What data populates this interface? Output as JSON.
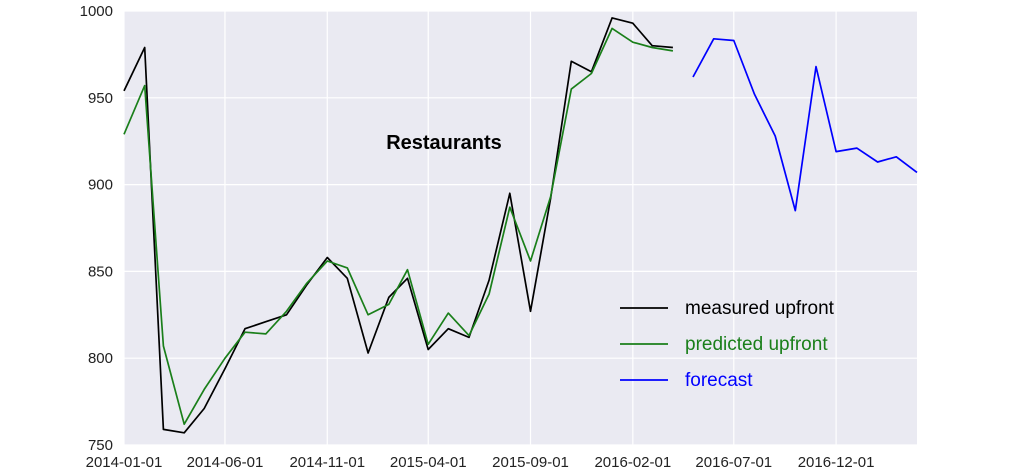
{
  "chart_data": {
    "type": "line",
    "title": "",
    "annotation": "Restaurants",
    "xlabel": "",
    "ylabel": "",
    "xlim": [
      "2014-01-01",
      "2017-04-01"
    ],
    "ylim": [
      750,
      1000
    ],
    "grid": true,
    "legend_position": "lower-right",
    "x_ticks": [
      "2014-01-01",
      "2014-06-01",
      "2014-11-01",
      "2015-04-01",
      "2015-09-01",
      "2016-02-01",
      "2016-07-01",
      "2016-12-01"
    ],
    "y_ticks": [
      750,
      800,
      850,
      900,
      950,
      1000
    ],
    "series": [
      {
        "name": "measured upfront",
        "color": "#000000",
        "x": [
          "2014-01-01",
          "2014-02-01",
          "2014-03-01",
          "2014-04-01",
          "2014-05-01",
          "2014-06-01",
          "2014-07-01",
          "2014-08-01",
          "2014-09-01",
          "2014-10-01",
          "2014-11-01",
          "2014-12-01",
          "2015-01-01",
          "2015-02-01",
          "2015-03-01",
          "2015-04-01",
          "2015-05-01",
          "2015-06-01",
          "2015-07-01",
          "2015-08-01",
          "2015-09-01",
          "2015-10-01",
          "2015-11-01",
          "2015-12-01",
          "2016-01-01",
          "2016-02-01",
          "2016-03-01",
          "2016-04-01"
        ],
        "values": [
          954,
          979,
          759,
          757,
          771,
          794,
          817,
          821,
          825,
          842,
          858,
          846,
          803,
          835,
          846,
          805,
          817,
          812,
          845,
          895,
          827,
          892,
          971,
          965,
          996,
          993,
          980,
          979
        ]
      },
      {
        "name": "predicted upfront",
        "color": "#1a7f1a",
        "x": [
          "2014-01-01",
          "2014-02-01",
          "2014-03-01",
          "2014-04-01",
          "2014-05-01",
          "2014-06-01",
          "2014-07-01",
          "2014-08-01",
          "2014-09-01",
          "2014-10-01",
          "2014-11-01",
          "2014-12-01",
          "2015-01-01",
          "2015-02-01",
          "2015-03-01",
          "2015-04-01",
          "2015-05-01",
          "2015-06-01",
          "2015-07-01",
          "2015-08-01",
          "2015-09-01",
          "2015-10-01",
          "2015-11-01",
          "2015-12-01",
          "2016-01-01",
          "2016-02-01",
          "2016-03-01",
          "2016-04-01"
        ],
        "values": [
          929,
          957,
          807,
          762,
          782,
          800,
          815,
          814,
          827,
          843,
          856,
          852,
          825,
          831,
          851,
          808,
          826,
          813,
          837,
          887,
          856,
          893,
          955,
          964,
          990,
          982,
          979,
          977
        ]
      },
      {
        "name": "forecast",
        "color": "#0000ff",
        "x": [
          "2016-05-01",
          "2016-06-01",
          "2016-07-01",
          "2016-08-01",
          "2016-09-01",
          "2016-10-01",
          "2016-11-01",
          "2016-12-01",
          "2017-01-01",
          "2017-02-01",
          "2017-03-01",
          "2017-04-01"
        ],
        "values": [
          962,
          984,
          983,
          952,
          928,
          885,
          968,
          919,
          921,
          913,
          916,
          907
        ]
      }
    ]
  }
}
